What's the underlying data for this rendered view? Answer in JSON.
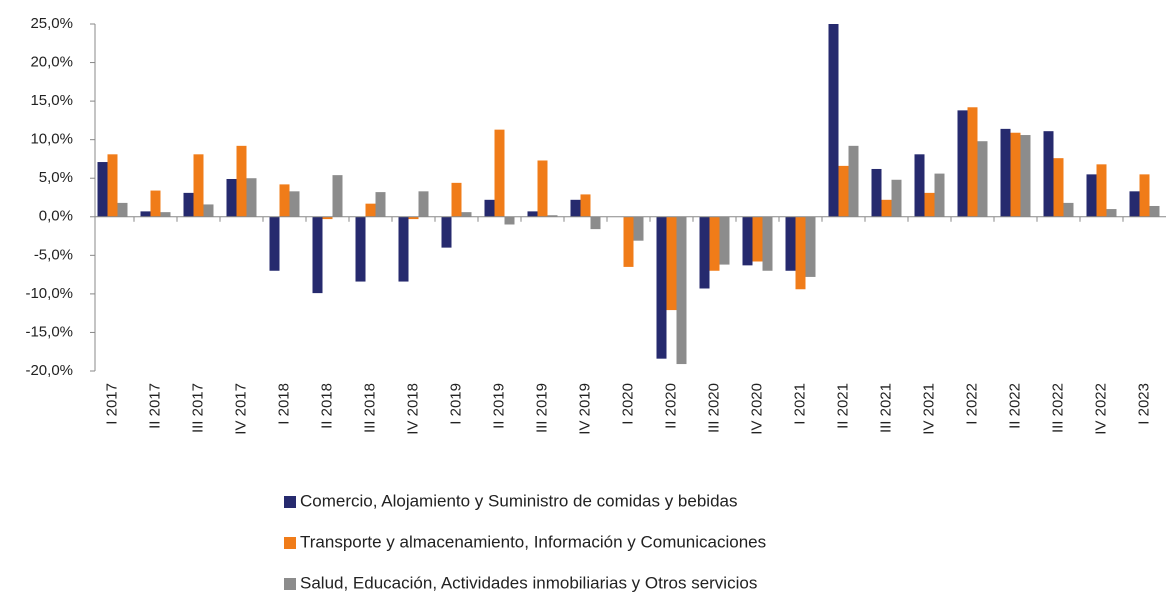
{
  "chart_data": {
    "type": "bar",
    "categories": [
      "I 2017",
      "II 2017",
      "III 2017",
      "IV 2017",
      "I 2018",
      "II 2018",
      "III 2018",
      "IV 2018",
      "I 2019",
      "II 2019",
      "III 2019",
      "IV 2019",
      "I 2020",
      "II 2020",
      "III 2020",
      "IV 2020",
      "I 2021",
      "II 2021",
      "III 2021",
      "IV 2021",
      "I 2022",
      "II 2022",
      "III 2022",
      "IV 2022",
      "I 2023"
    ],
    "series": [
      {
        "name": "Comercio,  Alojamiento y Suministro de comidas y bebidas",
        "color": "#262a6e",
        "values": [
          7.1,
          0.7,
          3.1,
          4.9,
          -7.0,
          -9.9,
          -8.4,
          -8.4,
          -4.0,
          2.2,
          0.7,
          2.2,
          0.0,
          -18.4,
          -9.3,
          -6.3,
          -7.0,
          25.0,
          6.2,
          8.1,
          13.8,
          11.4,
          11.1,
          5.5,
          3.3
        ]
      },
      {
        "name": "Transporte y almacenamiento, Información y Comunicaciones",
        "color": "#f07c19",
        "values": [
          8.1,
          3.4,
          8.1,
          9.2,
          4.2,
          -0.3,
          1.7,
          -0.3,
          4.4,
          11.3,
          7.3,
          2.9,
          -6.5,
          -12.1,
          -7.0,
          -5.8,
          -9.4,
          6.6,
          2.2,
          3.1,
          14.2,
          10.9,
          7.6,
          6.8,
          5.5
        ]
      },
      {
        "name": "Salud, Educación, Actividades inmobiliarias y Otros servicios",
        "color": "#8c8c8c",
        "values": [
          1.8,
          0.6,
          1.6,
          5.0,
          3.3,
          5.4,
          3.2,
          3.3,
          0.6,
          -1.0,
          0.2,
          -1.6,
          -3.1,
          -19.1,
          -6.2,
          -7.0,
          -7.8,
          9.2,
          4.8,
          5.6,
          9.8,
          10.6,
          1.8,
          1.0,
          1.4
        ]
      }
    ],
    "ylim": [
      -20,
      25
    ],
    "yticks": [
      {
        "value": -20,
        "label": "-20,0%"
      },
      {
        "value": -15,
        "label": "-15,0%"
      },
      {
        "value": -10,
        "label": "-10,0%"
      },
      {
        "value": -5,
        "label": "-5,0%"
      },
      {
        "value": 0,
        "label": "0,0%"
      },
      {
        "value": 5,
        "label": "5,0%"
      },
      {
        "value": 10,
        "label": "10,0%"
      },
      {
        "value": 15,
        "label": "15,0%"
      },
      {
        "value": 20,
        "label": "20,0%"
      },
      {
        "value": 25,
        "label": "25,0%"
      }
    ],
    "legend": "bottom"
  }
}
